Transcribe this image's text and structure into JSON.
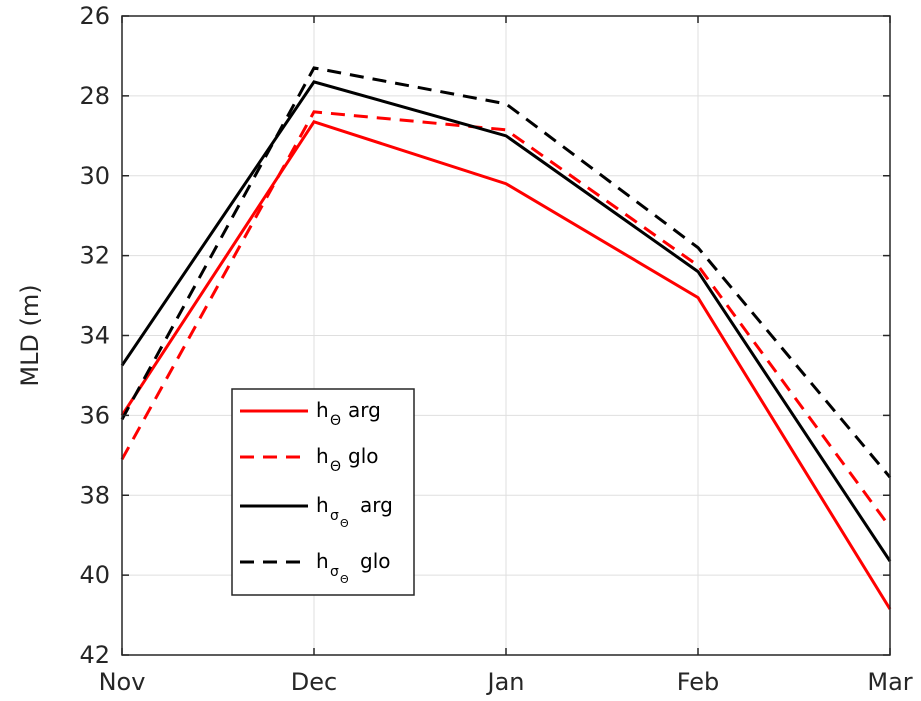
{
  "chart_data": {
    "type": "line",
    "categories": [
      "Nov",
      "Dec",
      "Jan",
      "Feb",
      "Mar"
    ],
    "ylabel": "MLD (m)",
    "ylim": [
      26,
      42
    ],
    "y_reversed": true,
    "yticks": [
      "26",
      "28",
      "30",
      "32",
      "34",
      "36",
      "38",
      "40",
      "42"
    ],
    "grid": true,
    "legend_position": "lower-left",
    "series": [
      {
        "legend_main": "h",
        "legend_sub": "Θ",
        "legend_subsub": "",
        "legend_suffix": "arg",
        "color": "#ff0000",
        "dash": "solid",
        "values": [
          36.0,
          28.65,
          30.2,
          33.05,
          40.85
        ]
      },
      {
        "legend_main": "h",
        "legend_sub": "Θ",
        "legend_subsub": "",
        "legend_suffix": "glo",
        "color": "#ff0000",
        "dash": "dashed",
        "values": [
          37.1,
          28.4,
          28.85,
          32.25,
          38.8
        ]
      },
      {
        "legend_main": "h",
        "legend_sub": "σ",
        "legend_subsub": "Θ",
        "legend_suffix": "arg",
        "color": "#000000",
        "dash": "solid",
        "values": [
          34.75,
          27.65,
          29.0,
          32.4,
          39.65
        ]
      },
      {
        "legend_main": "h",
        "legend_sub": "σ",
        "legend_subsub": "Θ",
        "legend_suffix": "glo",
        "color": "#000000",
        "dash": "dashed",
        "values": [
          36.1,
          27.3,
          28.2,
          31.8,
          37.55
        ]
      }
    ]
  }
}
